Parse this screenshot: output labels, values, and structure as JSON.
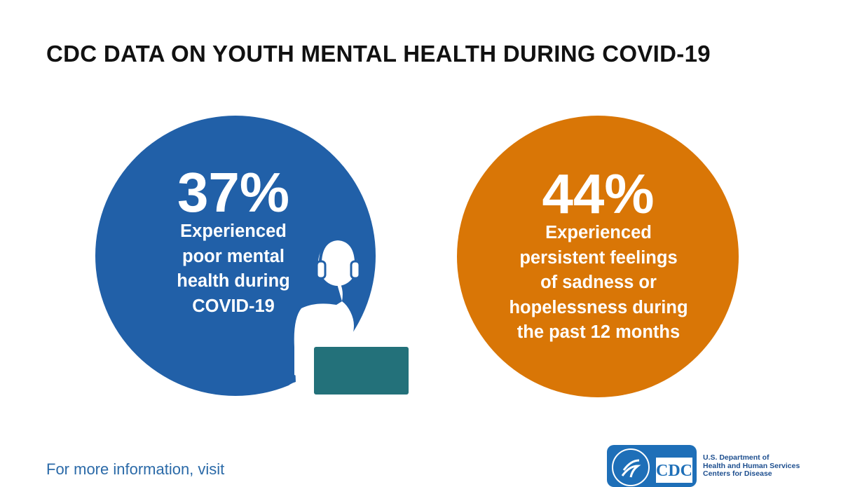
{
  "title": "CDC DATA ON YOUTH MENTAL HEALTH DURING COVID-19",
  "stats": [
    {
      "value": "37%",
      "description": [
        "Experienced",
        "poor mental",
        "health during",
        "COVID-19"
      ],
      "color": "#2160a8"
    },
    {
      "value": "44%",
      "description": [
        "Experienced",
        "persistent feelings",
        "of sadness or",
        "hopelessness during",
        "the past 12 months"
      ],
      "color": "#d97606"
    }
  ],
  "illustration": {
    "icon": "person-with-headphones-laptop-icon",
    "silhouette_color": "#ffffff",
    "laptop_color": "#23717a"
  },
  "footer": {
    "text": "For more information, visit"
  },
  "logo": {
    "cdc_text": "CDC",
    "hhs_lines": [
      "U.S. Department of",
      "Health and Human Services",
      "Centers for Disease"
    ],
    "color": "#1e4f8f"
  }
}
